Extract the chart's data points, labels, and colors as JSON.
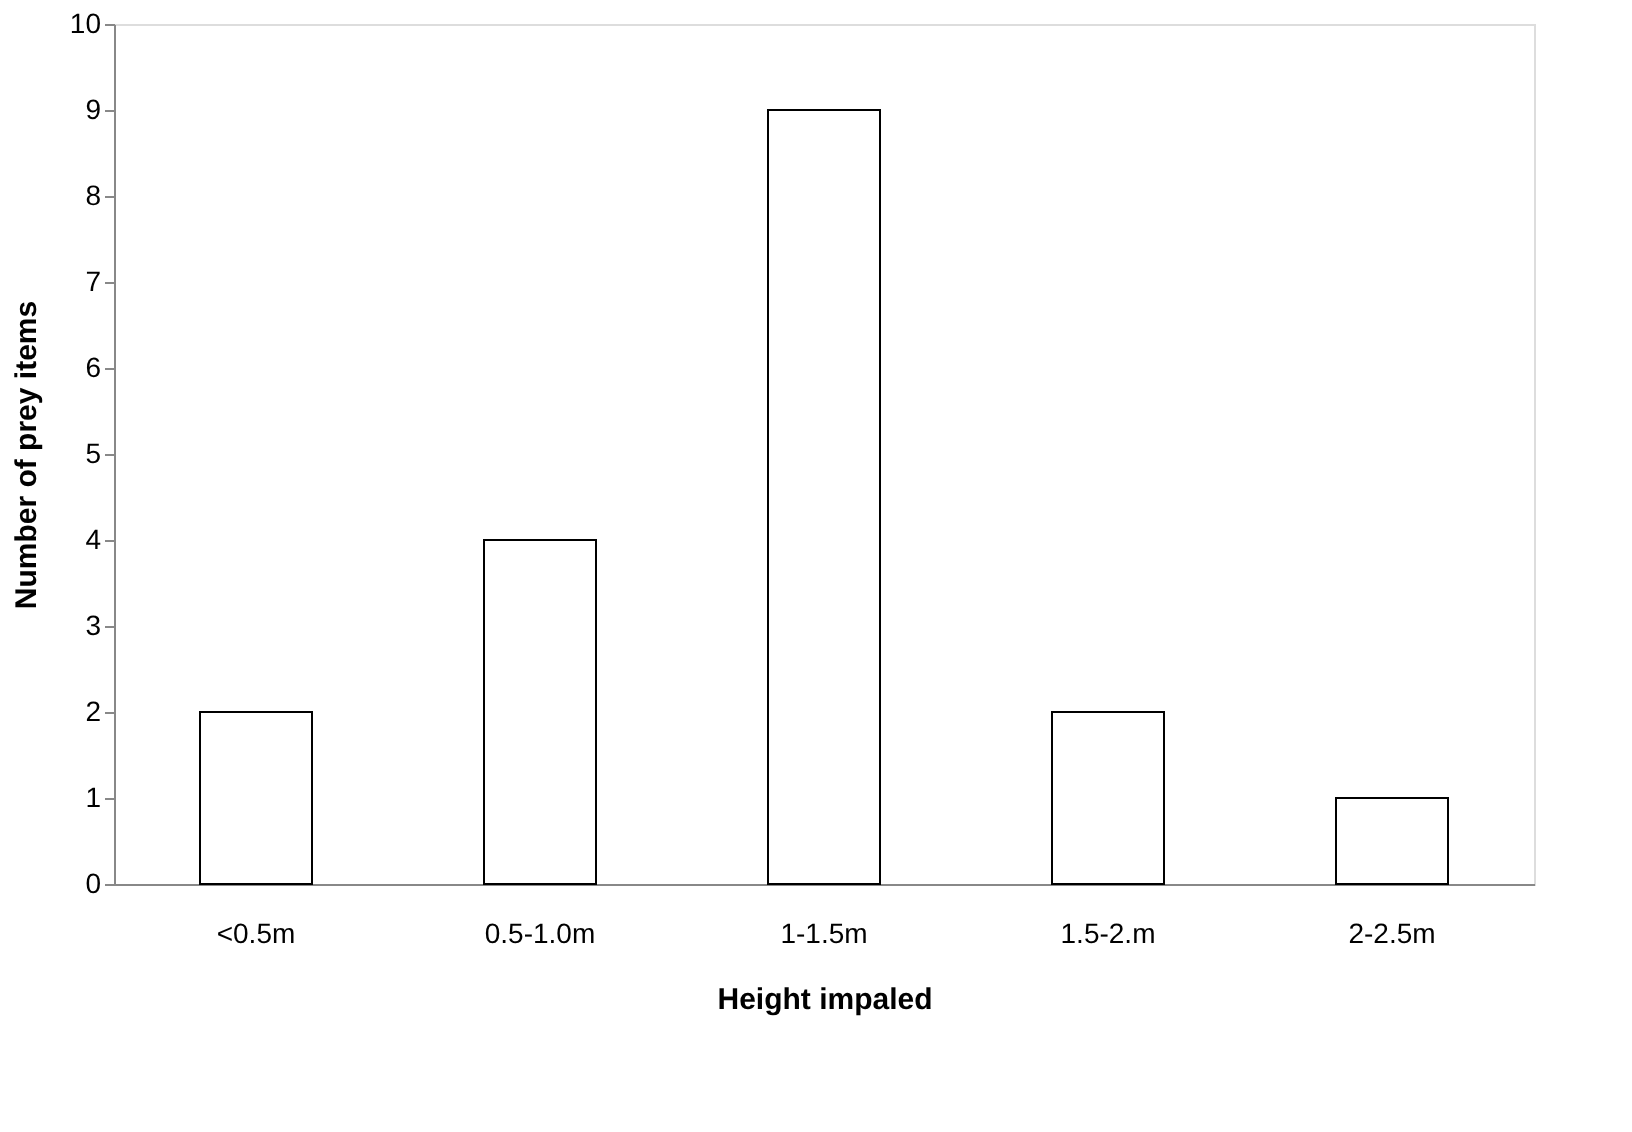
{
  "chart_data": {
    "type": "bar",
    "xlabel": "Height impaled",
    "ylabel": "Number of prey items",
    "categories": [
      "<0.5m",
      "0.5-1.0m",
      "1-1.5m",
      "1.5-2.m",
      "2-2.5m"
    ],
    "values": [
      2,
      4,
      9,
      2,
      1
    ],
    "color": "#ffffff",
    "ylim": [
      0,
      10
    ],
    "yticks": [
      0,
      1,
      2,
      3,
      4,
      5,
      6,
      7,
      8,
      9,
      10
    ],
    "grid": false
  }
}
